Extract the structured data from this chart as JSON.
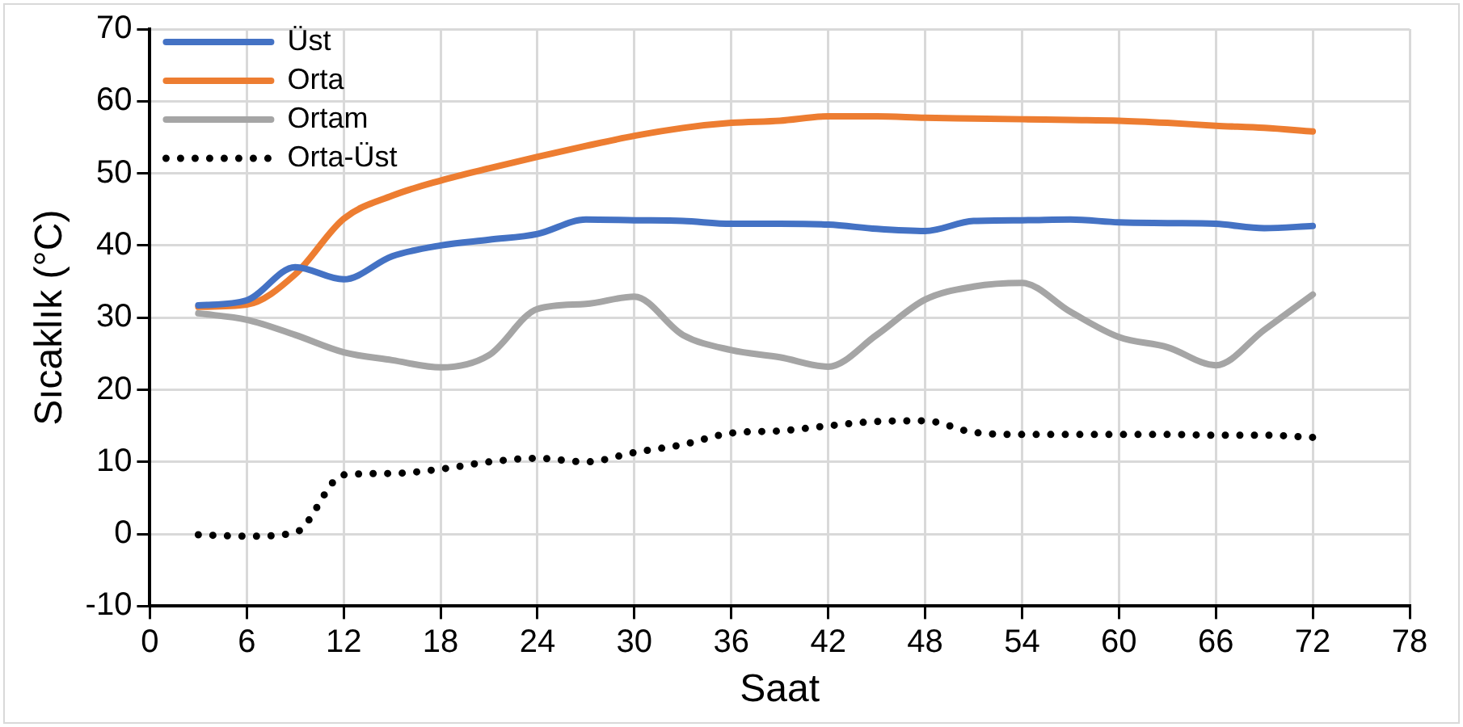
{
  "chart_data": {
    "type": "line",
    "xlabel": "Saat",
    "ylabel": "Sıcaklık (°C)",
    "x": [
      3,
      6,
      9,
      12,
      15,
      18,
      21,
      24,
      27,
      30,
      33,
      36,
      39,
      42,
      45,
      48,
      51,
      54,
      57,
      60,
      63,
      66,
      69,
      72
    ],
    "series": [
      {
        "name": "Üst",
        "color": "#4472c4",
        "line_style": "solid",
        "values": [
          31.7,
          32.4,
          37,
          35.3,
          38.5,
          40,
          40.8,
          41.6,
          43.6,
          43.5,
          43.4,
          43,
          43,
          42.9,
          42.3,
          42,
          43.4,
          43.5,
          43.6,
          43.2,
          43.1,
          43,
          42.4,
          42.7
        ]
      },
      {
        "name": "Orta",
        "color": "#ed7d31",
        "line_style": "solid",
        "values": [
          31.5,
          31.8,
          36,
          43.7,
          46.9,
          49,
          50.7,
          52.3,
          53.8,
          55.2,
          56.3,
          57,
          57.3,
          57.9,
          57.9,
          57.7,
          57.6,
          57.5,
          57.4,
          57.3,
          57,
          56.6,
          56.3,
          55.8
        ]
      },
      {
        "name": "Ortam",
        "color": "#a5a5a5",
        "line_style": "solid",
        "values": [
          30.6,
          29.7,
          27.6,
          25.2,
          24.1,
          23.1,
          24.8,
          31.2,
          31.9,
          32.9,
          27.6,
          25.5,
          24.5,
          23.2,
          27.6,
          32.5,
          34.3,
          34.8,
          30.8,
          27.3,
          25.9,
          23.4,
          28.3,
          33.2
        ]
      },
      {
        "name": "Orta-Üst",
        "color": "#000000",
        "line_style": "dotted",
        "values": [
          -0.1,
          -0.3,
          0.2,
          8.2,
          8.4,
          9,
          10,
          10.5,
          10,
          11.3,
          12.4,
          14,
          14.3,
          15,
          15.6,
          15.7,
          14.1,
          13.8,
          13.8,
          13.8,
          13.8,
          13.7,
          13.7,
          13.4
        ]
      }
    ],
    "xlim": [
      0,
      78
    ],
    "xticks": [
      0,
      6,
      12,
      18,
      24,
      30,
      36,
      42,
      48,
      54,
      60,
      66,
      72,
      78
    ],
    "ylim": [
      -10,
      70
    ],
    "yticks": [
      -10,
      0,
      10,
      20,
      30,
      40,
      50,
      60,
      70
    ],
    "grid": true,
    "legend": "top left",
    "marker": "none"
  }
}
